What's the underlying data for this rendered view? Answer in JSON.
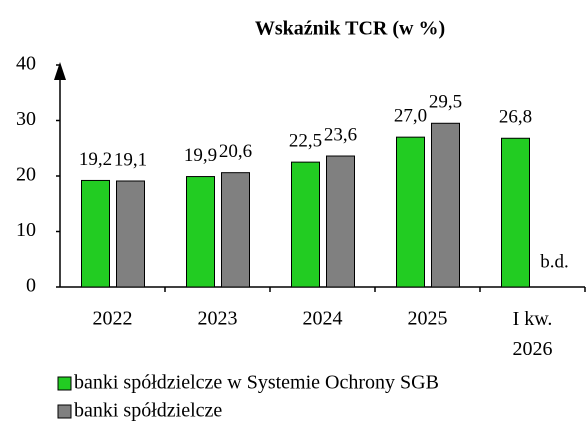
{
  "chart_data": {
    "type": "bar",
    "title": "Wskaźnik TCR (w %)",
    "categories": [
      "2022",
      "2023",
      "2024",
      "2025",
      "I kw. 2026"
    ],
    "series": [
      {
        "name": "banki spółdzielcze w Systemie Ochrony SGB",
        "color": "#22cc22",
        "values": [
          19.2,
          19.9,
          22.5,
          27.0,
          26.8
        ],
        "value_labels": [
          "19,2",
          "19,9",
          "22,5",
          "27,0",
          "26,8"
        ]
      },
      {
        "name": "banki spółdzielcze",
        "color": "#808080",
        "values": [
          19.1,
          20.6,
          23.6,
          29.5,
          null
        ],
        "value_labels": [
          "19,1",
          "20,6",
          "23,6",
          "29,5",
          "b.d."
        ]
      }
    ],
    "ylim": [
      0,
      40
    ],
    "yticks": [
      0,
      10,
      20,
      30,
      40
    ],
    "grid": false
  }
}
